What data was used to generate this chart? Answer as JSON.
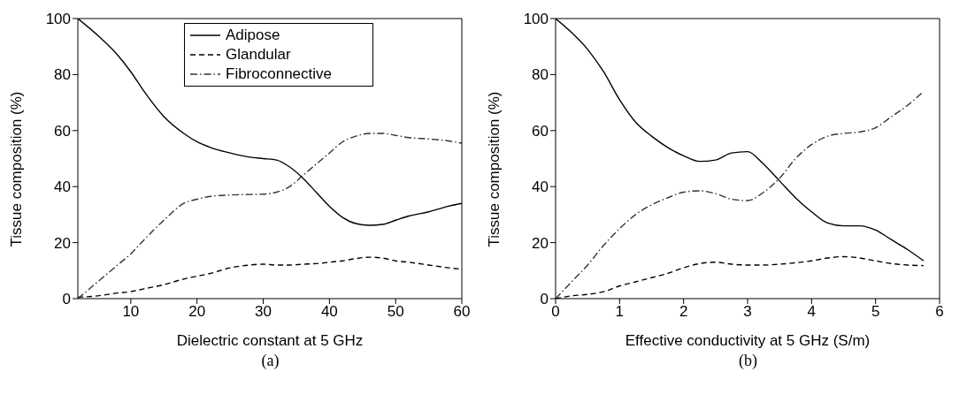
{
  "chart_data": [
    {
      "type": "line",
      "xlabel": "Dielectric constant at 5 GHz",
      "ylabel": "Tissue composition (%)",
      "annotations": [
        "(a)"
      ],
      "xlim": [
        2,
        60
      ],
      "xticks": [
        10,
        20,
        30,
        40,
        50,
        60
      ],
      "ylim": [
        0,
        100
      ],
      "yticks": [
        0,
        20,
        40,
        60,
        80,
        100
      ],
      "grid": false,
      "legend": "top",
      "marker": "none",
      "x": [
        2,
        5,
        8,
        10,
        12,
        15,
        18,
        20,
        22,
        25,
        28,
        30,
        32,
        34,
        36,
        38,
        40,
        42,
        44,
        46,
        48,
        50,
        52,
        55,
        58,
        60
      ],
      "series": [
        {
          "name": "Adipose",
          "color": "#000000",
          "line_style": "solid",
          "values": [
            100,
            94,
            87,
            81,
            74,
            65,
            59,
            56,
            54,
            52,
            50.5,
            50,
            49.5,
            47,
            43,
            38,
            33,
            29,
            26.8,
            26.2,
            26.5,
            28,
            29.5,
            31,
            33,
            34
          ]
        },
        {
          "name": "Glandular",
          "color": "#000000",
          "line_style": "dashed",
          "values": [
            0.5,
            1,
            2,
            2.5,
            3.5,
            5,
            7,
            8,
            9,
            11,
            12,
            12.3,
            12,
            12,
            12.3,
            12.5,
            13,
            13.5,
            14.3,
            14.8,
            14.5,
            13.5,
            13,
            12,
            11,
            10.5
          ]
        },
        {
          "name": "Fibroconnective",
          "color": "#333333",
          "line_style": "dotted",
          "values": [
            0,
            6,
            12,
            16,
            21,
            28,
            34,
            35.5,
            36.5,
            37,
            37.2,
            37.3,
            38,
            40,
            44,
            48,
            52,
            56,
            58,
            59,
            59,
            58.3,
            57.5,
            57,
            56.3,
            55.5
          ]
        }
      ]
    },
    {
      "type": "line",
      "xlabel": "Effective conductivity at 5 GHz (S/m)",
      "ylabel": "Tissue composition (%)",
      "annotations": [
        "(b)"
      ],
      "xlim": [
        0,
        6
      ],
      "xticks": [
        0,
        1,
        2,
        3,
        4,
        5,
        6
      ],
      "ylim": [
        0,
        100
      ],
      "yticks": [
        0,
        20,
        40,
        60,
        80,
        100
      ],
      "grid": false,
      "marker": "none",
      "x": [
        0,
        0.25,
        0.5,
        0.75,
        1,
        1.25,
        1.5,
        1.75,
        2,
        2.25,
        2.5,
        2.75,
        3,
        3.25,
        3.5,
        3.75,
        4,
        4.25,
        4.5,
        4.75,
        5,
        5.25,
        5.5,
        5.75
      ],
      "series": [
        {
          "color": "#000000",
          "line_style": "solid",
          "values": [
            100,
            95,
            89,
            81,
            71,
            63,
            58,
            54,
            51,
            49,
            49.5,
            52,
            52.5,
            48,
            42,
            36,
            31,
            27,
            26,
            26,
            24.5,
            21,
            17.5,
            13.5
          ]
        },
        {
          "color": "#000000",
          "line_style": "dashed",
          "values": [
            0,
            1,
            1.5,
            2.5,
            4.5,
            6,
            7.5,
            9,
            11,
            12.5,
            13,
            12.3,
            12,
            12,
            12.3,
            12.8,
            13.5,
            14.5,
            15,
            14.5,
            13.5,
            12.5,
            12,
            11.8
          ]
        },
        {
          "color": "#333333",
          "line_style": "dotted",
          "values": [
            0,
            6,
            12,
            19,
            25,
            30,
            33.5,
            36,
            38,
            38.5,
            37.5,
            35.5,
            35,
            38,
            43,
            50,
            55,
            58,
            59,
            59.5,
            61,
            65,
            69,
            74
          ]
        }
      ]
    }
  ]
}
